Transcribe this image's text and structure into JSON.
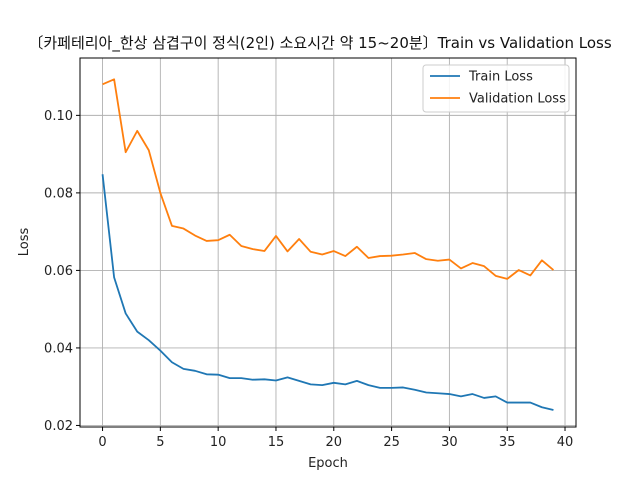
{
  "chart_data": {
    "type": "line",
    "title": "〔카페테리아_한상 삼겹구이 정식(2인) 소요시간 약 15~20분〕Train vs Validation Loss",
    "xlabel": "Epoch",
    "ylabel": "Loss",
    "xlim": [
      -1.95,
      40.95
    ],
    "ylim": [
      0.0196,
      0.1148
    ],
    "xticks": [
      0,
      5,
      10,
      15,
      20,
      25,
      30,
      35,
      40
    ],
    "yticks": [
      0.02,
      0.04,
      0.06,
      0.08,
      0.1
    ],
    "ytick_labels": [
      "0.02",
      "0.04",
      "0.06",
      "0.08",
      "0.10"
    ],
    "grid": true,
    "legend_position": "top-right",
    "x": [
      0,
      1,
      2,
      3,
      4,
      5,
      6,
      7,
      8,
      9,
      10,
      11,
      12,
      13,
      14,
      15,
      16,
      17,
      18,
      19,
      20,
      21,
      22,
      23,
      24,
      25,
      26,
      27,
      28,
      29,
      30,
      31,
      32,
      33,
      34,
      35,
      36,
      37,
      38,
      39
    ],
    "series": [
      {
        "name": "Train Loss",
        "color": "#1f77b4",
        "values": [
          0.0848,
          0.0582,
          0.0489,
          0.0442,
          0.042,
          0.0393,
          0.0363,
          0.0346,
          0.0341,
          0.0332,
          0.0331,
          0.0322,
          0.0322,
          0.0318,
          0.0319,
          0.0316,
          0.0324,
          0.0315,
          0.0306,
          0.0304,
          0.031,
          0.0306,
          0.0315,
          0.0304,
          0.0297,
          0.0297,
          0.0298,
          0.0292,
          0.0285,
          0.0283,
          0.0281,
          0.0275,
          0.0281,
          0.0271,
          0.0275,
          0.0259,
          0.0259,
          0.0259,
          0.0247,
          0.024
        ]
      },
      {
        "name": "Validation Loss",
        "color": "#ff7f0e",
        "values": [
          0.108,
          0.1093,
          0.0905,
          0.096,
          0.091,
          0.08,
          0.0715,
          0.0708,
          0.069,
          0.0676,
          0.0678,
          0.0692,
          0.0663,
          0.0655,
          0.065,
          0.0689,
          0.0649,
          0.0681,
          0.0648,
          0.0641,
          0.065,
          0.0637,
          0.0661,
          0.0632,
          0.0637,
          0.0638,
          0.0641,
          0.0645,
          0.0629,
          0.0625,
          0.0628,
          0.0605,
          0.0619,
          0.0611,
          0.0586,
          0.0578,
          0.0601,
          0.0587,
          0.0626,
          0.0601
        ]
      }
    ]
  }
}
